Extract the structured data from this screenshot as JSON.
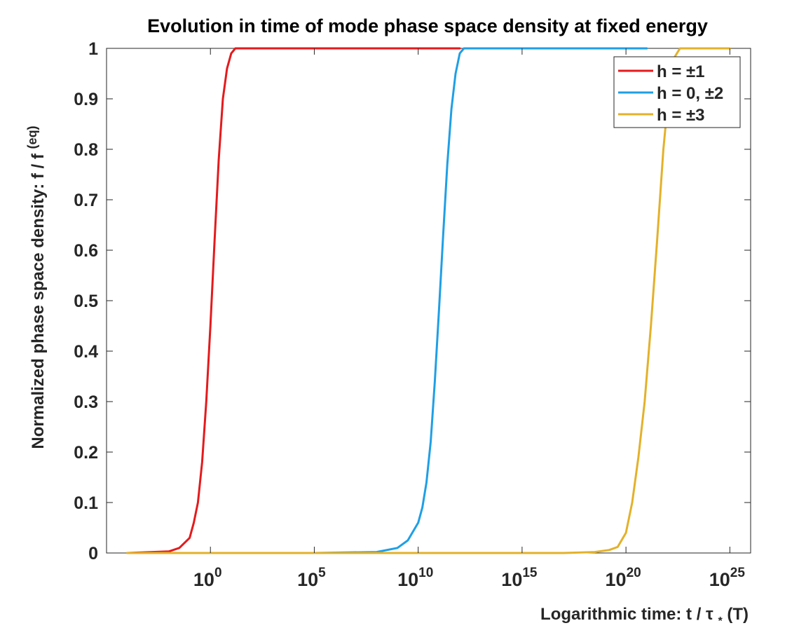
{
  "chart_data": {
    "type": "line",
    "title": "Evolution in time of mode phase space density at fixed energy",
    "xlabel": "Logarithmic time: t / τ",
    "xlabel_sub": "*",
    "xlabel_suffix": "(T)",
    "ylabel": "Normalized phase space density:  f / f",
    "ylabel_sup": "(eq)",
    "x_scale": "log",
    "xlim_exp": [
      -5,
      26
    ],
    "ylim": [
      0,
      1
    ],
    "grid": false,
    "legend_position": "top-right",
    "x_ticks": [
      {
        "base": "10",
        "exp": "0",
        "value_exp": 0
      },
      {
        "base": "10",
        "exp": "5",
        "value_exp": 5
      },
      {
        "base": "10",
        "exp": "10",
        "value_exp": 10
      },
      {
        "base": "10",
        "exp": "15",
        "value_exp": 15
      },
      {
        "base": "10",
        "exp": "20",
        "value_exp": 20
      },
      {
        "base": "10",
        "exp": "25",
        "value_exp": 25
      }
    ],
    "y_ticks": [
      "0",
      "0.1",
      "0.2",
      "0.3",
      "0.4",
      "0.5",
      "0.6",
      "0.7",
      "0.8",
      "0.9",
      "1"
    ],
    "series": [
      {
        "name": "h = ±1",
        "color": "#e41a1c",
        "log10_t": [
          -4,
          -2,
          -1.5,
          -1,
          -0.8,
          -0.6,
          -0.4,
          -0.2,
          0,
          0.2,
          0.4,
          0.6,
          0.8,
          1,
          1.2,
          1.5,
          2,
          5,
          10,
          12
        ],
        "f": [
          0,
          0.003,
          0.01,
          0.03,
          0.06,
          0.1,
          0.18,
          0.3,
          0.45,
          0.62,
          0.78,
          0.9,
          0.96,
          0.99,
          1,
          1,
          1,
          1,
          1,
          1
        ]
      },
      {
        "name": "h = 0, ±2",
        "color": "#1f9fe5",
        "log10_t": [
          -4,
          5,
          8,
          9,
          9.5,
          10,
          10.2,
          10.4,
          10.6,
          10.8,
          11,
          11.2,
          11.4,
          11.6,
          11.8,
          12,
          12.2,
          12.5,
          15,
          21
        ],
        "f": [
          0,
          0,
          0.002,
          0.01,
          0.025,
          0.06,
          0.09,
          0.14,
          0.22,
          0.34,
          0.48,
          0.63,
          0.77,
          0.88,
          0.95,
          0.99,
          1,
          1,
          1,
          1
        ]
      },
      {
        "name": "h = ±3",
        "color": "#e3b12a",
        "log10_t": [
          -4,
          10,
          17,
          18.5,
          19.2,
          19.6,
          20,
          20.3,
          20.6,
          20.9,
          21.2,
          21.5,
          21.8,
          22.1,
          22.3,
          22.6,
          23,
          25
        ],
        "f": [
          0,
          0,
          0,
          0.002,
          0.006,
          0.012,
          0.04,
          0.1,
          0.19,
          0.3,
          0.45,
          0.62,
          0.8,
          0.93,
          0.98,
          1,
          1,
          1
        ]
      }
    ]
  }
}
